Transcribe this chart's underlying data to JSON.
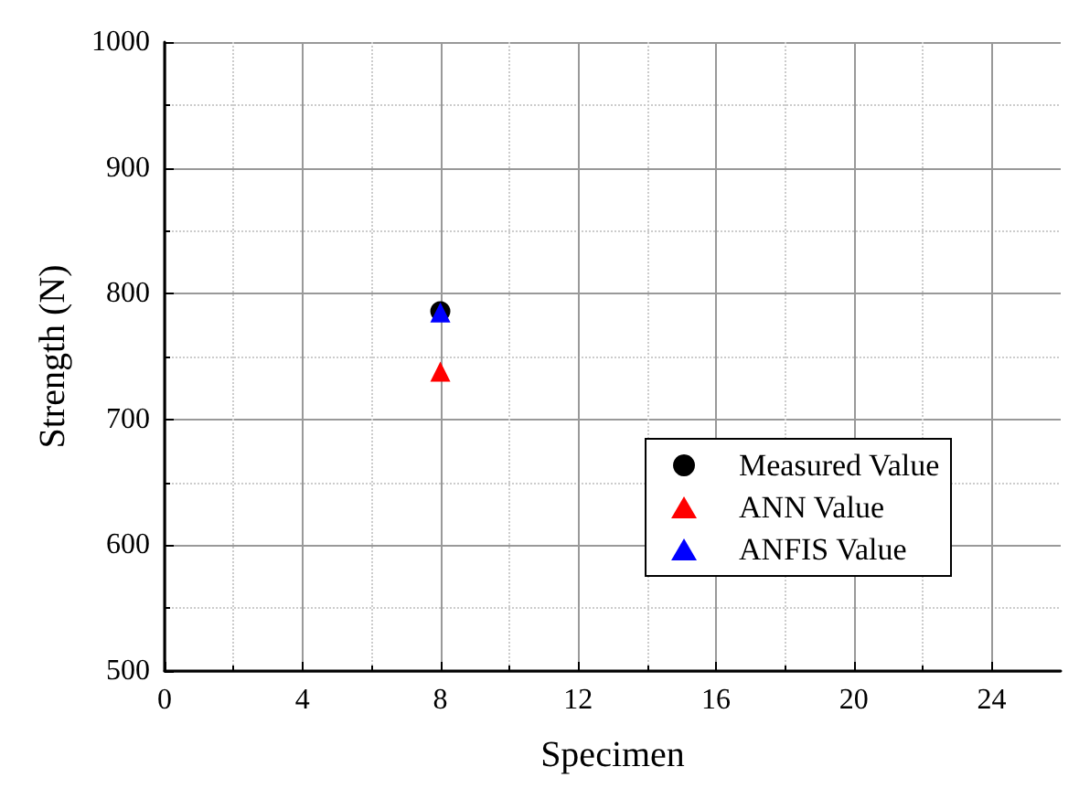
{
  "chart_data": {
    "type": "scatter",
    "xlabel": "Specimen",
    "ylabel": "Strength (N)",
    "x": [
      8
    ],
    "series": [
      {
        "name": "Measured Value",
        "color": "#000000",
        "values": [
          786
        ],
        "marker": "circle"
      },
      {
        "name": "ANN Value",
        "color": "#ff0000",
        "values": [
          738
        ],
        "marker": "triangle"
      },
      {
        "name": "ANFIS Value",
        "color": "#0000ff",
        "values": [
          785
        ],
        "marker": "triangle"
      }
    ],
    "xlim": [
      0,
      26
    ],
    "xticks": [
      0,
      4,
      8,
      12,
      16,
      20,
      24
    ],
    "ylim": [
      500,
      1000
    ],
    "yticks": [
      500,
      600,
      700,
      800,
      900,
      1000
    ],
    "grid": true,
    "legend": "right"
  }
}
